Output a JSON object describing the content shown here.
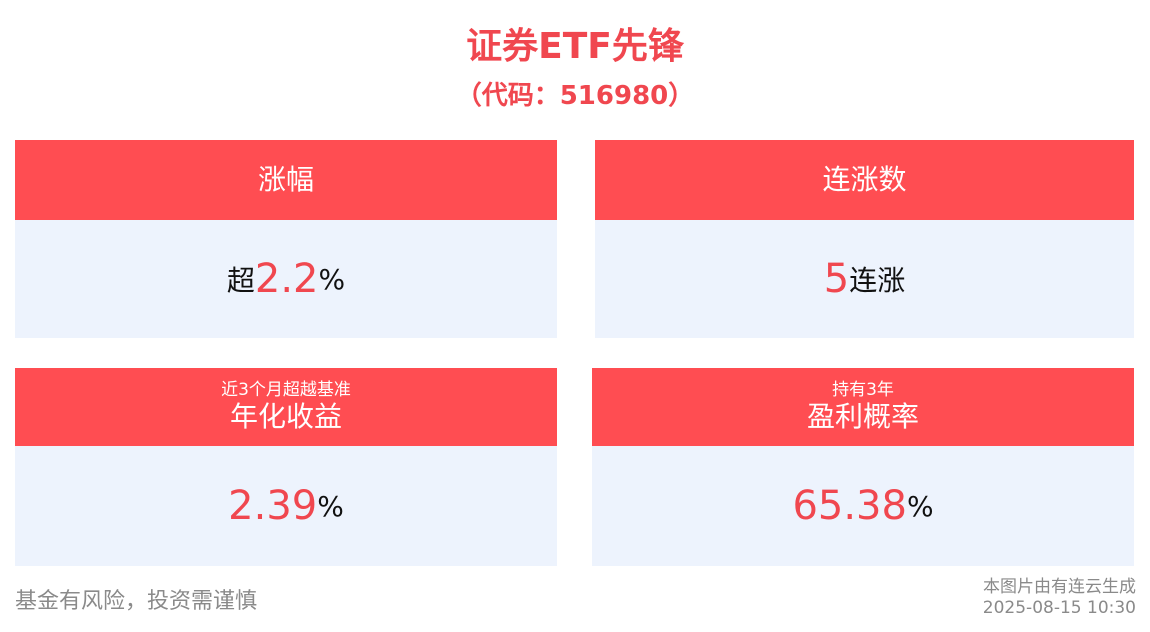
{
  "header": {
    "title": "证券ETF先锋",
    "code": "（代码：516980）"
  },
  "cards": {
    "gain": {
      "title": "涨幅",
      "prefix": "超",
      "value": "2.2",
      "unit": "%"
    },
    "streak": {
      "title": "连涨数",
      "value": "5",
      "suffix": "连涨"
    },
    "annualized": {
      "subtitle": "近3个月超越基准",
      "title": "年化收益",
      "value": "2.39",
      "unit": "%"
    },
    "profit_prob": {
      "subtitle": "持有3年",
      "title": "盈利概率",
      "value": "65.38",
      "unit": "%"
    }
  },
  "footer": {
    "disclaimer": "基金有风险，投资需谨慎",
    "generated_by": "本图片由有连云生成",
    "timestamp": "2025-08-15 10:30"
  },
  "colors": {
    "accent": "#f0474f",
    "header_bg": "#ff4d52",
    "body_bg": "#edf3fd",
    "muted": "#8a8a8a"
  }
}
